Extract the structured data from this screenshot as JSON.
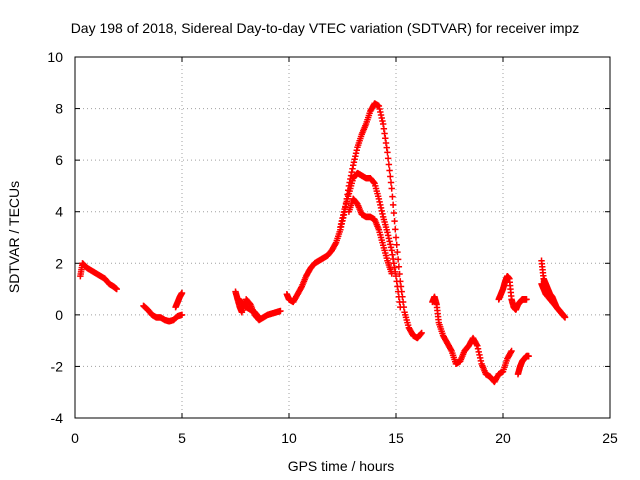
{
  "chart_data": {
    "type": "scatter",
    "title": "Day 198 of 2018, Sidereal Day-to-day VTEC variation (SDTVAR) for receiver impz",
    "xlabel": "GPS time / hours",
    "ylabel": "SDTVAR / TECUs",
    "xlim": [
      0,
      25
    ],
    "ylim": [
      -4,
      10
    ],
    "xticks": [
      0,
      5,
      10,
      15,
      20,
      25
    ],
    "yticks": [
      -4,
      -2,
      0,
      2,
      4,
      6,
      8,
      10
    ],
    "xtick_labels": [
      "0",
      "5",
      "10",
      "15",
      "20",
      "25"
    ],
    "ytick_labels": [
      "-4",
      "-2",
      "0",
      "2",
      "4",
      "6",
      "8",
      "10"
    ],
    "grid": true,
    "marker": "plus",
    "series_color": "#ff0000",
    "segments": [
      {
        "x": [
          0.25,
          0.35,
          0.45,
          0.6,
          0.8,
          1.0,
          1.2,
          1.4,
          1.6,
          1.8,
          1.95
        ],
        "y": [
          1.5,
          2.0,
          1.9,
          1.8,
          1.7,
          1.6,
          1.5,
          1.4,
          1.2,
          1.1,
          1.0
        ]
      },
      {
        "x": [
          3.2,
          3.4,
          3.6,
          3.8,
          4.0,
          4.2,
          4.4,
          4.6,
          4.8,
          5.0
        ],
        "y": [
          0.35,
          0.2,
          0.0,
          -0.1,
          -0.1,
          -0.2,
          -0.25,
          -0.2,
          -0.05,
          0.0
        ]
      },
      {
        "x": [
          4.7,
          4.8,
          4.9,
          5.0
        ],
        "y": [
          0.3,
          0.5,
          0.7,
          0.85
        ]
      },
      {
        "x": [
          7.5,
          7.6,
          7.7,
          7.8,
          8.0,
          8.2,
          8.4,
          8.6,
          8.8,
          9.0,
          9.2,
          9.4,
          9.6
        ],
        "y": [
          0.9,
          0.6,
          0.3,
          0.1,
          0.6,
          0.4,
          0.0,
          -0.2,
          -0.1,
          0.0,
          0.05,
          0.1,
          0.15
        ]
      },
      {
        "x": [
          7.6,
          7.8,
          8.0,
          8.2,
          8.4,
          8.6
        ],
        "y": [
          0.6,
          0.5,
          0.3,
          0.2,
          0.1,
          -0.1
        ]
      },
      {
        "x": [
          9.9,
          10.0,
          10.2,
          10.4,
          10.6,
          10.8,
          11.0,
          11.2,
          11.4,
          11.6,
          11.8,
          12.0,
          12.2,
          12.4,
          12.6,
          12.8,
          13.0,
          13.2,
          13.4,
          13.6,
          13.8,
          14.0,
          14.2,
          14.4,
          14.6,
          14.8,
          15.0,
          15.2,
          15.4,
          15.6,
          15.8,
          16.0,
          16.2
        ],
        "y": [
          0.8,
          0.6,
          0.5,
          0.8,
          1.1,
          1.5,
          1.8,
          2.0,
          2.1,
          2.2,
          2.3,
          2.5,
          2.8,
          3.3,
          4.0,
          5.0,
          5.8,
          6.5,
          7.0,
          7.4,
          7.9,
          8.2,
          8.1,
          7.4,
          6.3,
          4.9,
          3.0,
          1.3,
          0.1,
          -0.5,
          -0.8,
          -0.9,
          -0.7
        ]
      },
      {
        "x": [
          12.4,
          12.6,
          12.8,
          13.0,
          13.2,
          13.4,
          13.6,
          13.8,
          14.0,
          14.2,
          14.4,
          14.6,
          14.8,
          15.0,
          15.2
        ],
        "y": [
          3.4,
          4.1,
          4.7,
          5.3,
          5.5,
          5.4,
          5.3,
          5.3,
          5.1,
          4.5,
          3.8,
          3.2,
          2.5,
          1.5,
          0.3
        ]
      },
      {
        "x": [
          12.8,
          13.0,
          13.2,
          13.4,
          13.6,
          13.8,
          14.0,
          14.2,
          14.4,
          14.6,
          14.8
        ],
        "y": [
          4.0,
          4.5,
          4.3,
          3.9,
          3.8,
          3.8,
          3.7,
          3.3,
          2.7,
          2.1,
          1.6
        ]
      },
      {
        "x": [
          16.7,
          16.8,
          16.9,
          17.0,
          17.2,
          17.4,
          17.6,
          17.8,
          18.0,
          18.2,
          18.4,
          18.6,
          18.8,
          19.0,
          19.2,
          19.4,
          19.6,
          19.8,
          20.0,
          20.2,
          20.4
        ],
        "y": [
          0.5,
          0.7,
          0.4,
          -0.3,
          -0.8,
          -1.1,
          -1.4,
          -1.9,
          -1.8,
          -1.4,
          -1.2,
          -0.9,
          -1.2,
          -1.9,
          -2.3,
          -2.4,
          -2.6,
          -2.3,
          -2.2,
          -1.7,
          -1.4
        ]
      },
      {
        "x": [
          19.8,
          19.9,
          20.0,
          20.1,
          20.2,
          20.3,
          20.4,
          20.5,
          20.6,
          20.7,
          20.8,
          20.9,
          21.0,
          21.1
        ],
        "y": [
          0.6,
          0.8,
          1.0,
          1.3,
          1.5,
          1.4,
          0.6,
          0.3,
          0.2,
          0.4,
          0.5,
          0.6,
          0.6,
          0.6
        ]
      },
      {
        "x": [
          20.7,
          20.8,
          20.9,
          21.0,
          21.1,
          21.2
        ],
        "y": [
          -2.3,
          -2.0,
          -1.8,
          -1.7,
          -1.6,
          -1.6
        ]
      },
      {
        "x": [
          21.8,
          21.9,
          22.0,
          22.1,
          22.2,
          22.3,
          22.4,
          22.5,
          22.6,
          22.7,
          22.8,
          22.9
        ],
        "y": [
          2.1,
          1.4,
          1.2,
          1.0,
          0.8,
          0.7,
          0.5,
          0.3,
          0.2,
          0.1,
          0.0,
          -0.1
        ]
      },
      {
        "x": [
          21.8,
          21.9,
          22.0,
          22.2,
          22.4,
          22.6,
          22.8
        ],
        "y": [
          1.2,
          1.0,
          0.8,
          0.6,
          0.4,
          0.2,
          0.0
        ]
      }
    ]
  }
}
